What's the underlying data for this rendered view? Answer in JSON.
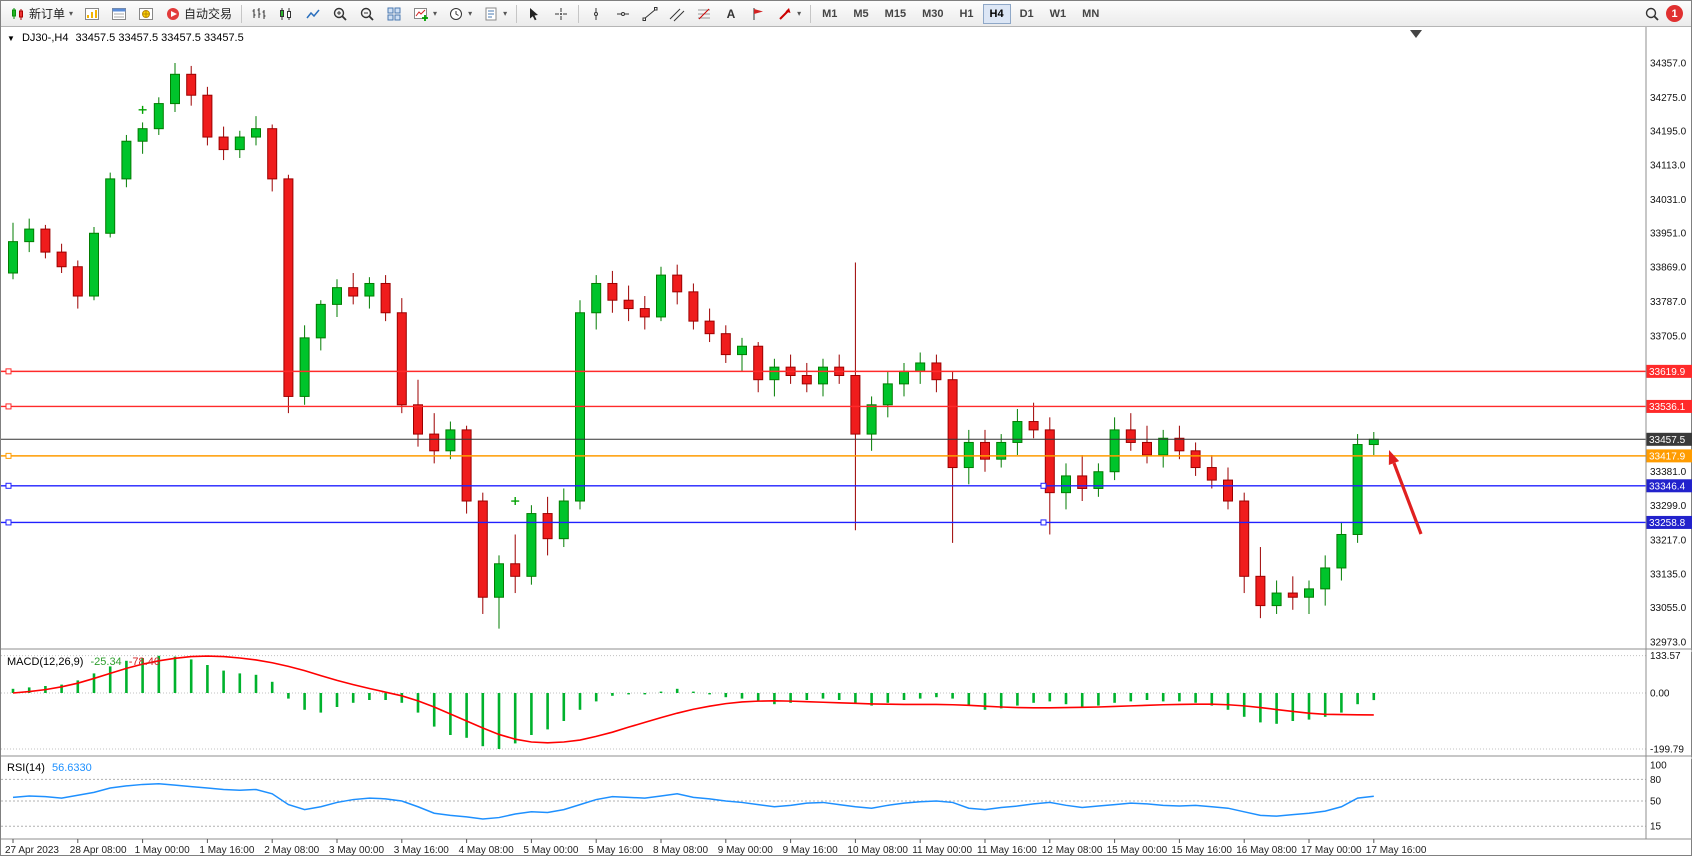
{
  "toolbar": {
    "new_order": "新订单",
    "auto_trading": "自动交易",
    "timeframes": [
      "M1",
      "M5",
      "M15",
      "M30",
      "H1",
      "H4",
      "D1",
      "W1",
      "MN"
    ],
    "active_timeframe": "H4",
    "notification_badge": "1",
    "icon_names": [
      "new-order-icon",
      "market-watch-icon",
      "data-window-icon",
      "navigator-icon",
      "auto-trading-icon",
      "bar-chart-icon",
      "candlestick-icon",
      "line-chart-icon",
      "zoom-in-icon",
      "zoom-out-icon",
      "tile-windows-icon",
      "indicators-icon",
      "periods-icon",
      "templates-icon",
      "cursor-icon",
      "crosshair-icon",
      "vertical-line-icon",
      "horizontal-line-icon",
      "trendline-icon",
      "channel-icon",
      "fibonacci-icon",
      "text-icon",
      "label-icon",
      "arrows-icon",
      "search-icon",
      "notification-icon"
    ]
  },
  "chart": {
    "symbol_period": "DJ30-,H4",
    "ohlc": "33457.5 33457.5 33457.5 33457.5"
  },
  "indicators": {
    "macd_label": "MACD(12,26,9)",
    "macd_main_value": "-25.34",
    "macd_signal_value": "-78.40",
    "rsi_label": "RSI(14)",
    "rsi_value": "56.6330"
  },
  "chart_data": {
    "type": "candlestick",
    "symbol": "DJ30-",
    "timeframe": "H4",
    "price_max": 34357.0,
    "price_min": 32973.0,
    "bull_color": "#00c42b",
    "bear_color": "#ef1c1c",
    "price_axis_labels": [
      34357.0,
      34275.0,
      34195.0,
      34113.0,
      34031.0,
      33951.0,
      33869.0,
      33787.0,
      33705.0,
      33381.0,
      33299.0,
      33217.0,
      33135.0,
      33055.0,
      32973.0
    ],
    "price_lines": [
      {
        "price": 33619.9,
        "label": "33619.9",
        "color": "#ff2a2a",
        "badge": "#ff2a2a"
      },
      {
        "price": 33536.1,
        "label": "33536.1",
        "color": "#ff2a2a",
        "badge": "#ff2a2a"
      },
      {
        "price": 33457.5,
        "label": "33457.5",
        "color": "#333333",
        "badge": "#3a3a3a",
        "current": true
      },
      {
        "price": 33417.9,
        "label": "33417.9",
        "color": "#ff9c00",
        "badge": "#ff9c00"
      },
      {
        "price": 33346.4,
        "label": "33346.4",
        "color": "#2020ff",
        "badge": "#2222cc",
        "center_handle": true
      },
      {
        "price": 33258.8,
        "label": "33258.8",
        "color": "#2020ff",
        "badge": "#2222cc",
        "center_handle": true
      }
    ],
    "time_labels": [
      "27 Apr 2023",
      "28 Apr 08:00",
      "1 May 00:00",
      "1 May 16:00",
      "2 May 08:00",
      "3 May 00:00",
      "3 May 16:00",
      "4 May 08:00",
      "5 May 00:00",
      "5 May 16:00",
      "8 May 08:00",
      "9 May 00:00",
      "9 May 16:00",
      "10 May 08:00",
      "11 May 00:00",
      "11 May 16:00",
      "12 May 08:00",
      "15 May 00:00",
      "15 May 16:00",
      "16 May 08:00",
      "17 May 00:00",
      "17 May 16:00"
    ],
    "label_every_n_candles": 4,
    "candles": [
      [
        33855,
        33975,
        33840,
        33930
      ],
      [
        33930,
        33985,
        33905,
        33960
      ],
      [
        33960,
        33970,
        33890,
        33905
      ],
      [
        33905,
        33925,
        33855,
        33870
      ],
      [
        33870,
        33885,
        33770,
        33800
      ],
      [
        33800,
        33965,
        33790,
        33950
      ],
      [
        33950,
        34095,
        33940,
        34080
      ],
      [
        34080,
        34185,
        34060,
        34170
      ],
      [
        34170,
        34215,
        34140,
        34200
      ],
      [
        34200,
        34275,
        34185,
        34260
      ],
      [
        34260,
        34357,
        34240,
        34330
      ],
      [
        34330,
        34350,
        34255,
        34280
      ],
      [
        34280,
        34300,
        34160,
        34180
      ],
      [
        34180,
        34205,
        34125,
        34150
      ],
      [
        34150,
        34195,
        34130,
        34180
      ],
      [
        34180,
        34230,
        34160,
        34200
      ],
      [
        34200,
        34210,
        34050,
        34080
      ],
      [
        34080,
        34090,
        33520,
        33560
      ],
      [
        33560,
        33730,
        33540,
        33700
      ],
      [
        33700,
        33790,
        33670,
        33780
      ],
      [
        33780,
        33840,
        33750,
        33820
      ],
      [
        33820,
        33855,
        33780,
        33800
      ],
      [
        33800,
        33845,
        33770,
        33830
      ],
      [
        33830,
        33850,
        33740,
        33760
      ],
      [
        33760,
        33795,
        33520,
        33540
      ],
      [
        33540,
        33600,
        33440,
        33470
      ],
      [
        33470,
        33520,
        33400,
        33430
      ],
      [
        33430,
        33500,
        33410,
        33480
      ],
      [
        33480,
        33490,
        33280,
        33310
      ],
      [
        33310,
        33330,
        33040,
        33080
      ],
      [
        33080,
        33180,
        33005,
        33160
      ],
      [
        33160,
        33230,
        33090,
        33130
      ],
      [
        33130,
        33300,
        33110,
        33280
      ],
      [
        33280,
        33320,
        33180,
        33220
      ],
      [
        33220,
        33340,
        33200,
        33310
      ],
      [
        33310,
        33790,
        33290,
        33760
      ],
      [
        33760,
        33850,
        33720,
        33830
      ],
      [
        33830,
        33860,
        33760,
        33790
      ],
      [
        33790,
        33825,
        33740,
        33770
      ],
      [
        33770,
        33800,
        33720,
        33750
      ],
      [
        33750,
        33870,
        33740,
        33850
      ],
      [
        33850,
        33875,
        33780,
        33810
      ],
      [
        33810,
        33830,
        33720,
        33740
      ],
      [
        33740,
        33770,
        33690,
        33710
      ],
      [
        33710,
        33730,
        33640,
        33660
      ],
      [
        33660,
        33700,
        33620,
        33680
      ],
      [
        33680,
        33690,
        33570,
        33600
      ],
      [
        33600,
        33650,
        33560,
        33630
      ],
      [
        33630,
        33660,
        33590,
        33610
      ],
      [
        33610,
        33640,
        33570,
        33590
      ],
      [
        33590,
        33650,
        33560,
        33630
      ],
      [
        33630,
        33660,
        33590,
        33610
      ],
      [
        33610,
        33880,
        33240,
        33470
      ],
      [
        33470,
        33560,
        33430,
        33540
      ],
      [
        33540,
        33620,
        33510,
        33590
      ],
      [
        33590,
        33640,
        33560,
        33620
      ],
      [
        33620,
        33665,
        33590,
        33640
      ],
      [
        33640,
        33660,
        33570,
        33600
      ],
      [
        33600,
        33620,
        33210,
        33390
      ],
      [
        33390,
        33480,
        33350,
        33450
      ],
      [
        33450,
        33480,
        33380,
        33410
      ],
      [
        33410,
        33470,
        33390,
        33450
      ],
      [
        33450,
        33530,
        33420,
        33500
      ],
      [
        33500,
        33545,
        33460,
        33480
      ],
      [
        33480,
        33510,
        33230,
        33330
      ],
      [
        33330,
        33400,
        33290,
        33370
      ],
      [
        33370,
        33420,
        33310,
        33340
      ],
      [
        33340,
        33400,
        33320,
        33380
      ],
      [
        33380,
        33510,
        33360,
        33480
      ],
      [
        33480,
        33520,
        33430,
        33450
      ],
      [
        33450,
        33490,
        33400,
        33420
      ],
      [
        33420,
        33480,
        33390,
        33460
      ],
      [
        33460,
        33490,
        33410,
        33430
      ],
      [
        33430,
        33450,
        33370,
        33390
      ],
      [
        33390,
        33420,
        33340,
        33360
      ],
      [
        33360,
        33390,
        33290,
        33310
      ],
      [
        33310,
        33330,
        33090,
        33130
      ],
      [
        33130,
        33200,
        33030,
        33060
      ],
      [
        33060,
        33120,
        33040,
        33090
      ],
      [
        33090,
        33130,
        33050,
        33080
      ],
      [
        33080,
        33120,
        33040,
        33100
      ],
      [
        33100,
        33180,
        33060,
        33150
      ],
      [
        33150,
        33260,
        33120,
        33230
      ],
      [
        33230,
        33470,
        33210,
        33445
      ],
      [
        33445,
        33475,
        33420,
        33457.5
      ]
    ],
    "markers": [
      {
        "index": 8,
        "price": 34245
      },
      {
        "index": 31,
        "price": 33310
      }
    ],
    "macd": {
      "axis_values": [
        133.57,
        0,
        -199.79
      ],
      "histogram": [
        15,
        20,
        25,
        30,
        45,
        70,
        95,
        115,
        125,
        133,
        130,
        120,
        100,
        80,
        70,
        65,
        40,
        -20,
        -60,
        -70,
        -50,
        -35,
        -25,
        -25,
        -35,
        -70,
        -120,
        -150,
        -160,
        -190,
        -200,
        -180,
        -150,
        -130,
        -100,
        -60,
        -30,
        -10,
        -5,
        -5,
        5,
        15,
        5,
        -5,
        -15,
        -20,
        -30,
        -40,
        -35,
        -25,
        -20,
        -25,
        -35,
        -45,
        -35,
        -25,
        -20,
        -15,
        -20,
        -45,
        -60,
        -55,
        -45,
        -35,
        -30,
        -40,
        -50,
        -45,
        -35,
        -30,
        -25,
        -30,
        -30,
        -35,
        -45,
        -60,
        -85,
        -105,
        -110,
        -100,
        -95,
        -85,
        -70,
        -40,
        -25.34
      ],
      "signal": [
        0,
        5,
        12,
        22,
        35,
        52,
        70,
        88,
        103,
        115,
        124,
        130,
        132,
        130,
        125,
        118,
        108,
        95,
        80,
        62,
        45,
        30,
        16,
        3,
        -10,
        -28,
        -50,
        -75,
        -100,
        -125,
        -148,
        -165,
        -175,
        -178,
        -175,
        -168,
        -155,
        -140,
        -122,
        -105,
        -88,
        -72,
        -58,
        -47,
        -38,
        -32,
        -29,
        -28,
        -29,
        -31,
        -33,
        -35,
        -37,
        -39,
        -40,
        -41,
        -41,
        -41,
        -42,
        -44,
        -47,
        -50,
        -52,
        -53,
        -53,
        -52,
        -51,
        -50,
        -48,
        -46,
        -44,
        -42,
        -41,
        -40,
        -40,
        -42,
        -46,
        -52,
        -59,
        -66,
        -72,
        -76,
        -77,
        -78,
        -78.4
      ]
    },
    "rsi": {
      "axis_values": [
        100,
        80,
        50,
        15
      ],
      "levels": [
        80,
        50,
        15
      ],
      "values": [
        55,
        57,
        56,
        54,
        58,
        62,
        68,
        71,
        73,
        74,
        72,
        70,
        68,
        66,
        65,
        66,
        60,
        45,
        38,
        42,
        48,
        52,
        54,
        53,
        50,
        42,
        33,
        30,
        28,
        25,
        27,
        32,
        35,
        34,
        38,
        45,
        52,
        56,
        55,
        54,
        57,
        60,
        55,
        53,
        50,
        48,
        45,
        42,
        44,
        47,
        48,
        45,
        42,
        40,
        44,
        47,
        49,
        50,
        48,
        40,
        38,
        41,
        43,
        46,
        48,
        44,
        41,
        43,
        45,
        47,
        46,
        44,
        43,
        44,
        42,
        40,
        35,
        30,
        29,
        31,
        33,
        36,
        42,
        54,
        56.633
      ]
    },
    "arrow_annotation": {
      "from": [
        1420,
        533
      ],
      "to": [
        1388,
        449
      ],
      "color": "#e02020"
    }
  }
}
